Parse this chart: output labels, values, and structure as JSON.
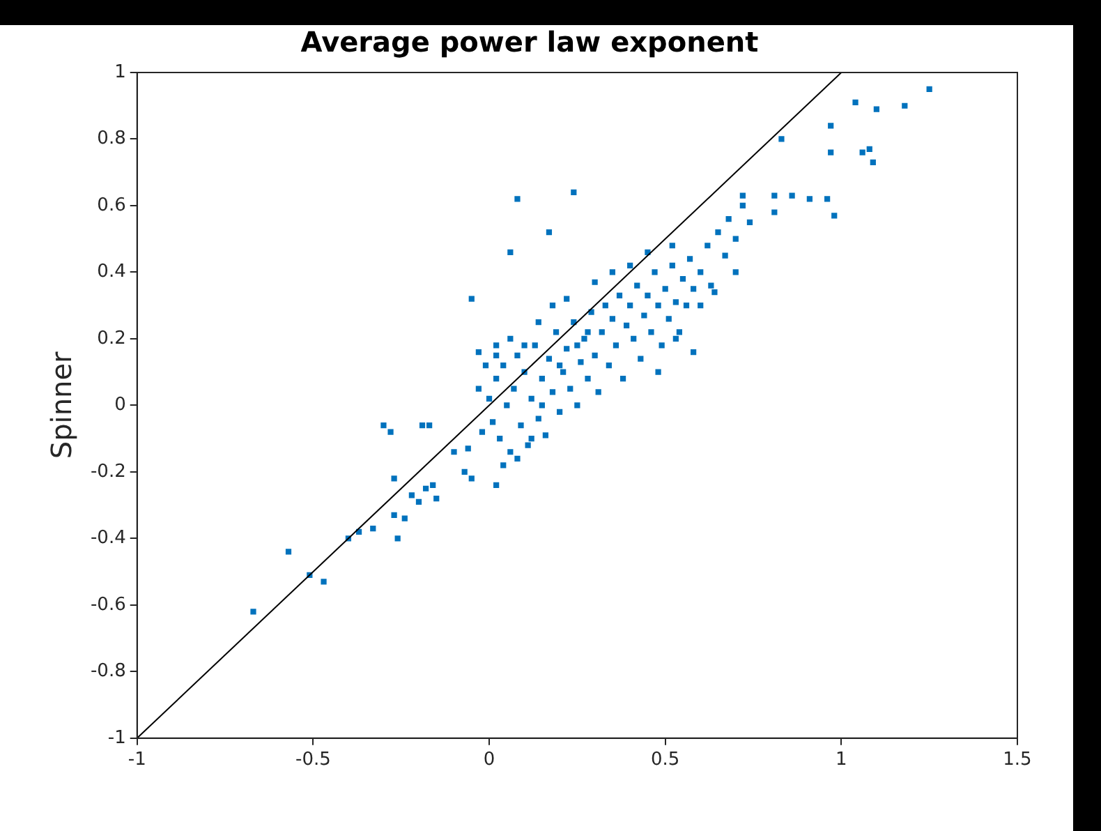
{
  "chart_data": {
    "type": "scatter",
    "title": "Average power law exponent",
    "ylabel": "Spinner",
    "xlim": [
      -1,
      1.5
    ],
    "xticks": [
      -1,
      -0.5,
      0,
      0.5,
      1,
      1.5
    ],
    "ylim": [
      -1,
      1
    ],
    "yticks": [
      -1,
      -0.8,
      -0.6,
      -0.4,
      -0.2,
      0,
      0.2,
      0.4,
      0.6,
      0.8,
      1
    ],
    "grid": false,
    "legend": false,
    "series": [
      {
        "type": "scatter",
        "color": "#0072bd",
        "marker": "square",
        "x": [
          -0.67,
          -0.57,
          -0.51,
          -0.47,
          -0.4,
          -0.37,
          -0.33,
          -0.27,
          -0.26,
          -0.24,
          -0.27,
          -0.22,
          -0.2,
          -0.18,
          -0.15,
          -0.16,
          -0.3,
          -0.28,
          -0.19,
          -0.17,
          -0.1,
          -0.06,
          -0.07,
          -0.05,
          0.02,
          -0.05,
          0.08,
          0.06,
          0.24,
          0.17,
          -0.03,
          0.02,
          0.52,
          0.83,
          0.97,
          0.97,
          1.04,
          1.1,
          1.18,
          1.25,
          1.06,
          1.08,
          1.09,
          0.98,
          0.81,
          0.86,
          0.91,
          0.96,
          0.81,
          0.72,
          0.0,
          0.01,
          0.02,
          0.03,
          0.04,
          0.05,
          0.06,
          0.07,
          0.08,
          0.09,
          0.1,
          0.11,
          0.12,
          0.13,
          0.14,
          0.15,
          0.16,
          0.17,
          0.18,
          0.19,
          0.2,
          0.21,
          0.22,
          0.23,
          0.24,
          0.25,
          0.26,
          0.27,
          0.28,
          0.29,
          0.3,
          0.31,
          0.32,
          0.33,
          0.34,
          0.35,
          0.36,
          0.37,
          0.38,
          0.39,
          0.4,
          0.41,
          0.42,
          0.43,
          0.44,
          0.45,
          0.46,
          0.47,
          0.48,
          0.49,
          0.5,
          0.51,
          0.52,
          0.53,
          0.54,
          0.55,
          0.56,
          0.57,
          0.58,
          0.6,
          0.62,
          0.63,
          0.65,
          0.67,
          0.68,
          0.7,
          0.72,
          0.74,
          -0.02,
          -0.03,
          -0.01,
          0.04,
          0.08,
          0.12,
          0.02,
          0.06,
          0.1,
          0.14,
          0.18,
          0.22,
          0.3,
          0.35,
          0.4,
          0.45,
          0.2,
          0.25,
          0.15,
          0.28,
          0.48,
          0.53,
          0.58,
          0.6,
          0.64,
          0.7
        ],
        "values": [
          -0.62,
          -0.44,
          -0.51,
          -0.53,
          -0.4,
          -0.38,
          -0.37,
          -0.33,
          -0.4,
          -0.34,
          -0.22,
          -0.27,
          -0.29,
          -0.25,
          -0.28,
          -0.24,
          -0.06,
          -0.08,
          -0.06,
          -0.06,
          -0.14,
          -0.13,
          -0.2,
          -0.22,
          -0.24,
          0.32,
          0.62,
          0.46,
          0.64,
          0.52,
          0.16,
          0.18,
          0.48,
          0.8,
          0.84,
          0.76,
          0.91,
          0.89,
          0.9,
          0.95,
          0.76,
          0.77,
          0.73,
          0.57,
          0.63,
          0.63,
          0.62,
          0.62,
          0.58,
          0.63,
          0.02,
          -0.05,
          0.08,
          -0.1,
          0.12,
          0.0,
          -0.14,
          0.05,
          0.15,
          -0.06,
          0.1,
          -0.12,
          0.02,
          0.18,
          -0.04,
          0.08,
          -0.09,
          0.14,
          0.04,
          0.22,
          -0.02,
          0.1,
          0.17,
          0.05,
          0.25,
          0.0,
          0.13,
          0.2,
          0.08,
          0.28,
          0.15,
          0.04,
          0.22,
          0.3,
          0.12,
          0.26,
          0.18,
          0.33,
          0.08,
          0.24,
          0.3,
          0.2,
          0.36,
          0.14,
          0.27,
          0.33,
          0.22,
          0.4,
          0.3,
          0.18,
          0.35,
          0.26,
          0.42,
          0.31,
          0.22,
          0.38,
          0.3,
          0.44,
          0.35,
          0.4,
          0.48,
          0.36,
          0.52,
          0.45,
          0.56,
          0.5,
          0.6,
          0.55,
          -0.08,
          0.05,
          0.12,
          -0.18,
          -0.16,
          -0.1,
          0.15,
          0.2,
          0.18,
          0.25,
          0.3,
          0.32,
          0.37,
          0.4,
          0.42,
          0.46,
          0.12,
          0.18,
          0.0,
          0.22,
          0.1,
          0.2,
          0.16,
          0.3,
          0.34,
          0.4
        ]
      },
      {
        "type": "line",
        "color": "#000000",
        "marker": "none",
        "x": [
          -1,
          1
        ],
        "values": [
          -1,
          1
        ]
      }
    ]
  }
}
